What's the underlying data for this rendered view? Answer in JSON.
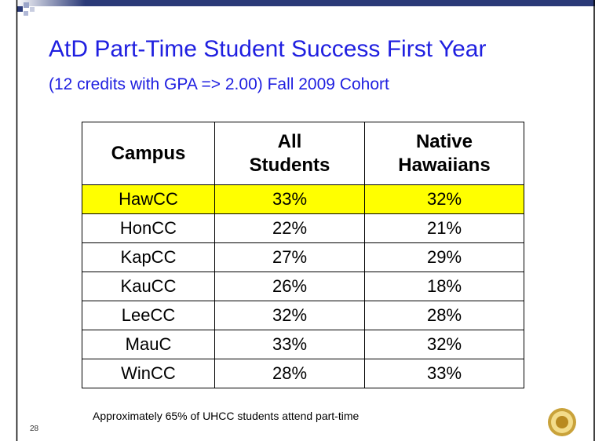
{
  "title": "AtD Part-Time Student Success First Year",
  "subtitle": "(12 credits with GPA => 2.00) Fall 2009 Cohort",
  "table": {
    "header": [
      "Campus",
      "All Students",
      "Native Hawaiians"
    ],
    "rows": [
      [
        "HawCC",
        "33%",
        "32%"
      ],
      [
        "HonCC",
        "22%",
        "21%"
      ],
      [
        "KapCC",
        "27%",
        "29%"
      ],
      [
        "KauCC",
        "26%",
        "18%"
      ],
      [
        "LeeCC",
        "32%",
        "28%"
      ],
      [
        "MauC",
        "33%",
        "32%"
      ],
      [
        "WinCC",
        "28%",
        "33%"
      ]
    ]
  },
  "footnote": "Approximately 65% of UHCC students attend part-time",
  "page_number": "28"
}
